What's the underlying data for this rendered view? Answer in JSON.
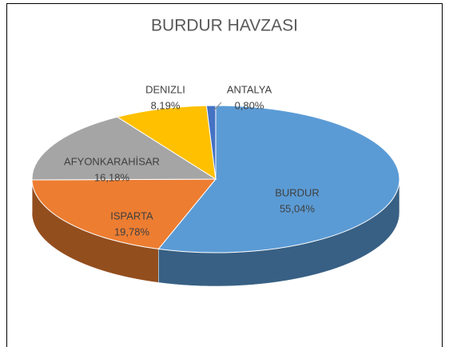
{
  "chart_data": {
    "type": "pie",
    "title": "BURDUR HAVZASI",
    "categories": [
      "BURDUR",
      "ISPARTA",
      "AFYONKARAHİSAR",
      "DENIZLI",
      "ANTALYA"
    ],
    "values": [
      55.04,
      19.78,
      16.18,
      8.19,
      0.8
    ],
    "value_labels": [
      "55,04%",
      "19,78%",
      "16,18%",
      "8,19%",
      "0,80%"
    ],
    "colors": [
      "#5b9bd5",
      "#ed7d31",
      "#a5a5a5",
      "#ffc000",
      "#4472c4"
    ]
  }
}
